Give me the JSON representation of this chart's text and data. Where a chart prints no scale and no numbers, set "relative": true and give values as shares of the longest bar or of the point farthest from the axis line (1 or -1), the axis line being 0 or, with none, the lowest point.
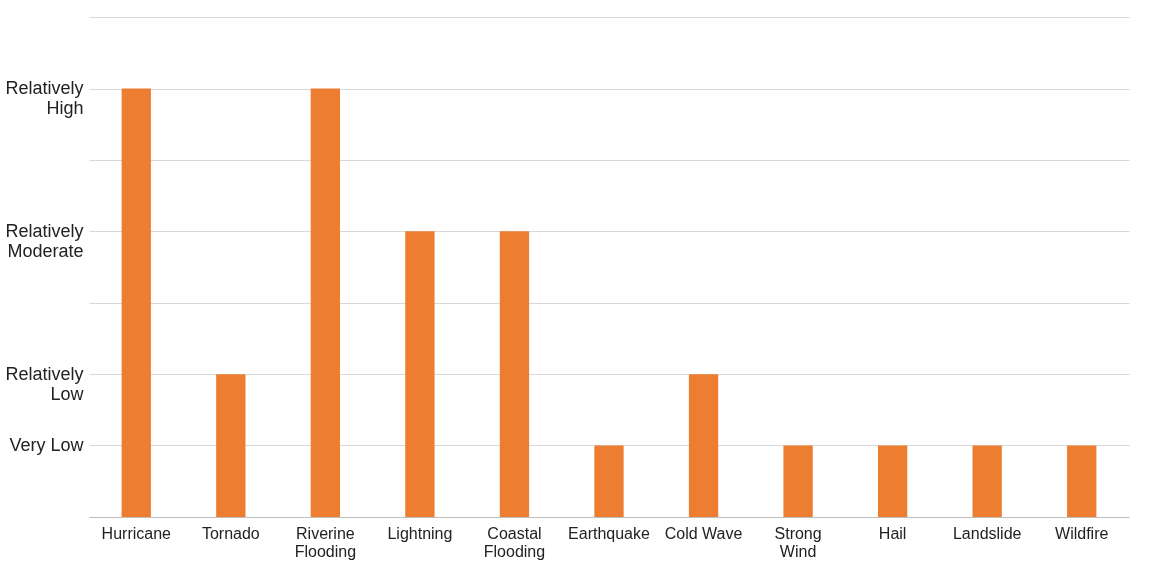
{
  "chart_data": {
    "type": "bar",
    "categories": [
      "Hurricane",
      "Tornado",
      "Riverine Flooding",
      "Lightning",
      "Coastal Flooding",
      "Earthquake",
      "Cold Wave",
      "Strong Wind",
      "Hail",
      "Landslide",
      "Wildfire"
    ],
    "values": [
      1,
      0.333,
      1,
      0.667,
      0.667,
      0.167,
      0.333,
      0.167,
      0.167,
      0.167,
      0.167
    ],
    "color": "#ed7d31",
    "relative": true,
    "ref_lines": [
      {
        "axis": "y",
        "value": 0.167,
        "label": "Very Low"
      },
      {
        "axis": "y",
        "value": 0.333,
        "label": "Relatively Low"
      },
      {
        "axis": "y",
        "value": 0.5
      },
      {
        "axis": "y",
        "value": 0.667,
        "label": "Relatively Moderate"
      },
      {
        "axis": "y",
        "value": 0.833
      },
      {
        "axis": "y",
        "value": 1,
        "label": "Relatively High"
      },
      {
        "axis": "y",
        "value": 1.167
      }
    ]
  }
}
